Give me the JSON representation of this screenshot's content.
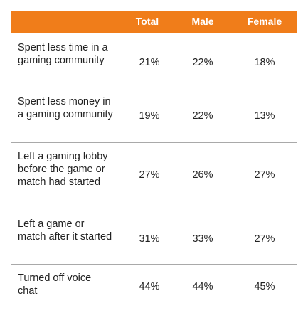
{
  "colors": {
    "header_bg": "#f07d1a",
    "header_text": "#ffffff",
    "divider": "#a9a9a9"
  },
  "chart_data": {
    "type": "table",
    "columns": [
      "",
      "Total",
      "Male",
      "Female"
    ],
    "rows": [
      {
        "label": "Spent less time in a gaming community",
        "values": [
          "21%",
          "22%",
          "18%"
        ]
      },
      {
        "label": "Spent less money in a gaming community",
        "values": [
          "19%",
          "22%",
          "13%"
        ]
      },
      {
        "label": "Left a gaming lobby before the game or match had started",
        "values": [
          "27%",
          "26%",
          "27%"
        ]
      },
      {
        "label": "Left a game or match after it started",
        "values": [
          "31%",
          "33%",
          "27%"
        ]
      },
      {
        "label": "Turned off voice chat",
        "values": [
          "44%",
          "44%",
          "45%"
        ]
      }
    ]
  }
}
